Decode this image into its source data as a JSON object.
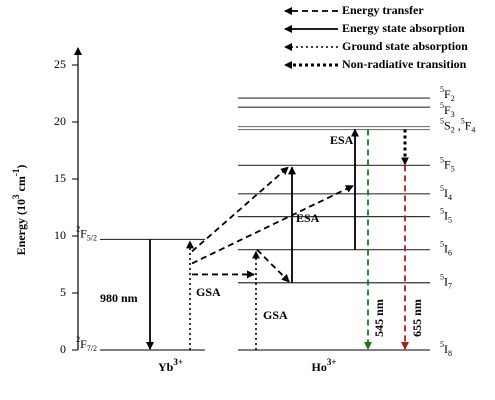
{
  "chart_data": {
    "type": "energy-level",
    "legend": [
      {
        "name": "Energy transfer",
        "style": "dashed"
      },
      {
        "name": "Energy state absorption",
        "style": "solid"
      },
      {
        "name": "Ground state absorption",
        "style": "dotted"
      },
      {
        "name": "Non-radiative transition",
        "style": "bold-dotted"
      }
    ],
    "ylabel": [
      "Energy (10",
      "3",
      " cm",
      "-1",
      ")"
    ],
    "ylim": [
      0,
      25
    ],
    "yticks": [
      0,
      5,
      10,
      15,
      20,
      25
    ],
    "groups": [
      {
        "name": [
          "Yb",
          "3+"
        ],
        "levels": [
          {
            "energy": 0,
            "label": [
              [
                "sup",
                "2"
              ],
              [
                "",
                "F"
              ],
              [
                "sub",
                "7/2"
              ]
            ]
          },
          {
            "energy": 9.7,
            "label": [
              [
                "sup",
                "2"
              ],
              [
                "",
                "F"
              ],
              [
                "sub",
                "5/2"
              ]
            ]
          }
        ]
      },
      {
        "name": [
          "Ho",
          "3+"
        ],
        "levels": [
          {
            "energy": 0,
            "label": [
              [
                "sup",
                "5"
              ],
              [
                "",
                "I"
              ],
              [
                "sub",
                "8"
              ]
            ]
          },
          {
            "energy": 5.9,
            "label": [
              [
                "sup",
                "5"
              ],
              [
                "",
                "I"
              ],
              [
                "sub",
                "7"
              ]
            ]
          },
          {
            "energy": 8.8,
            "label": [
              [
                "sup",
                "5"
              ],
              [
                "",
                "I"
              ],
              [
                "sub",
                "6"
              ]
            ]
          },
          {
            "energy": 11.7,
            "label": [
              [
                "sup",
                "5"
              ],
              [
                "",
                "I"
              ],
              [
                "sub",
                "5"
              ]
            ]
          },
          {
            "energy": 13.7,
            "label": [
              [
                "sup",
                "5"
              ],
              [
                "",
                "I"
              ],
              [
                "sub",
                "4"
              ]
            ]
          },
          {
            "energy": 16.2,
            "label": [
              [
                "sup",
                "5"
              ],
              [
                "",
                "F"
              ],
              [
                "sub",
                "5"
              ]
            ]
          },
          {
            "energy": 19.6,
            "label": [
              [
                "sup",
                "5"
              ],
              [
                "",
                "S"
              ],
              [
                "sub",
                "2"
              ],
              [
                "",
                " ,"
              ],
              [
                "sup",
                "5"
              ],
              [
                "",
                "F"
              ],
              [
                "sub",
                "4"
              ]
            ]
          },
          {
            "energy": 21.3,
            "label": [
              [
                "sup",
                "5"
              ],
              [
                "",
                "F"
              ],
              [
                "sub",
                "3"
              ]
            ]
          },
          {
            "energy": 22.1,
            "label": [
              [
                "sup",
                "5"
              ],
              [
                "",
                "F"
              ],
              [
                "sub",
                "2"
              ]
            ]
          }
        ]
      }
    ],
    "annotations": [
      "980 nm",
      "GSA",
      "GSA",
      "ESA",
      "ESA",
      "545 nm",
      "655 nm"
    ]
  }
}
